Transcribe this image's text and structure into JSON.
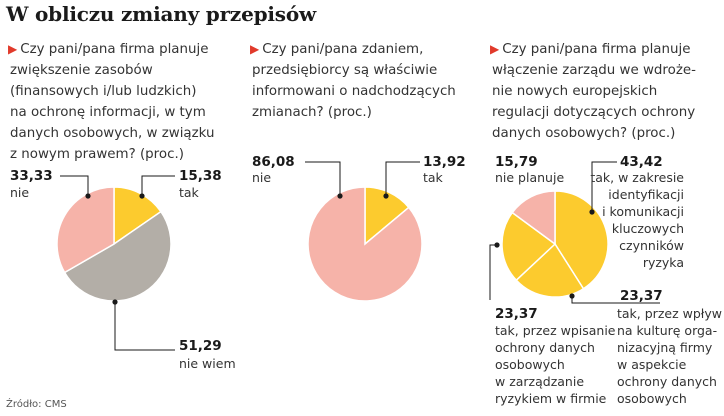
{
  "title": "W obliczu zmiany przepisów",
  "source": "Źródło: CMS",
  "colors": {
    "yellow": "#fccb2e",
    "pink": "#f6b3a9",
    "gray": "#b3aea7",
    "accent": "#e13a2b"
  },
  "chart_data": [
    {
      "type": "pie",
      "question": [
        "Czy pani/pana firma planuje",
        "zwiększenie zasobów",
        "(finansowych i/lub ludzkich)",
        "na ochronę informacji, w tym",
        "danych osobowych, w związku",
        "z nowym prawem? (proc.)"
      ],
      "slices": [
        {
          "label": "tak",
          "value": 15.38,
          "value_text": "15,38",
          "color": "#fccb2e"
        },
        {
          "label": "nie wiem",
          "value": 51.29,
          "value_text": "51,29",
          "color": "#b3aea7"
        },
        {
          "label": "nie",
          "value": 33.33,
          "value_text": "33,33",
          "color": "#f6b3a9"
        }
      ]
    },
    {
      "type": "pie",
      "question": [
        "Czy pani/pana zdaniem,",
        "przedsiębiorcy są właściwie",
        "informowani o nadchodzących",
        "zmianach? (proc.)"
      ],
      "slices": [
        {
          "label": "tak",
          "value": 13.92,
          "value_text": "13,92",
          "color": "#fccb2e"
        },
        {
          "label": "nie",
          "value": 86.08,
          "value_text": "86,08",
          "color": "#f6b3a9"
        }
      ]
    },
    {
      "type": "pie",
      "question": [
        "Czy pani/pana firma planuje",
        "włączenie zarządu we wdroże-",
        "nie nowych europejskich",
        "regulacji dotyczących ochrony",
        "danych osobowych? (proc.)"
      ],
      "slices": [
        {
          "label": [
            "tak, w zakresie",
            "identyfikacji",
            "i komunikacji",
            "kluczowych",
            "czynników",
            "ryzyka"
          ],
          "value": 43.42,
          "value_text": "43,42",
          "color": "#fccb2e"
        },
        {
          "label": [
            "tak, przez wpływ",
            "na kulturę orga-",
            "nizacyjną firmy",
            "w aspekcie",
            "ochrony danych",
            "osobowych"
          ],
          "value": 23.37,
          "value_text": "23,37",
          "color": "#fccb2e"
        },
        {
          "label": [
            "tak, przez wpisanie",
            "ochrony danych",
            "osobowych",
            "w zarządzanie",
            "ryzykiem w firmie"
          ],
          "value": 23.37,
          "value_text": "23,37",
          "color": "#fccb2e"
        },
        {
          "label": [
            "nie planuje"
          ],
          "value": 15.79,
          "value_text": "15,79",
          "color": "#f6b3a9"
        }
      ]
    }
  ]
}
